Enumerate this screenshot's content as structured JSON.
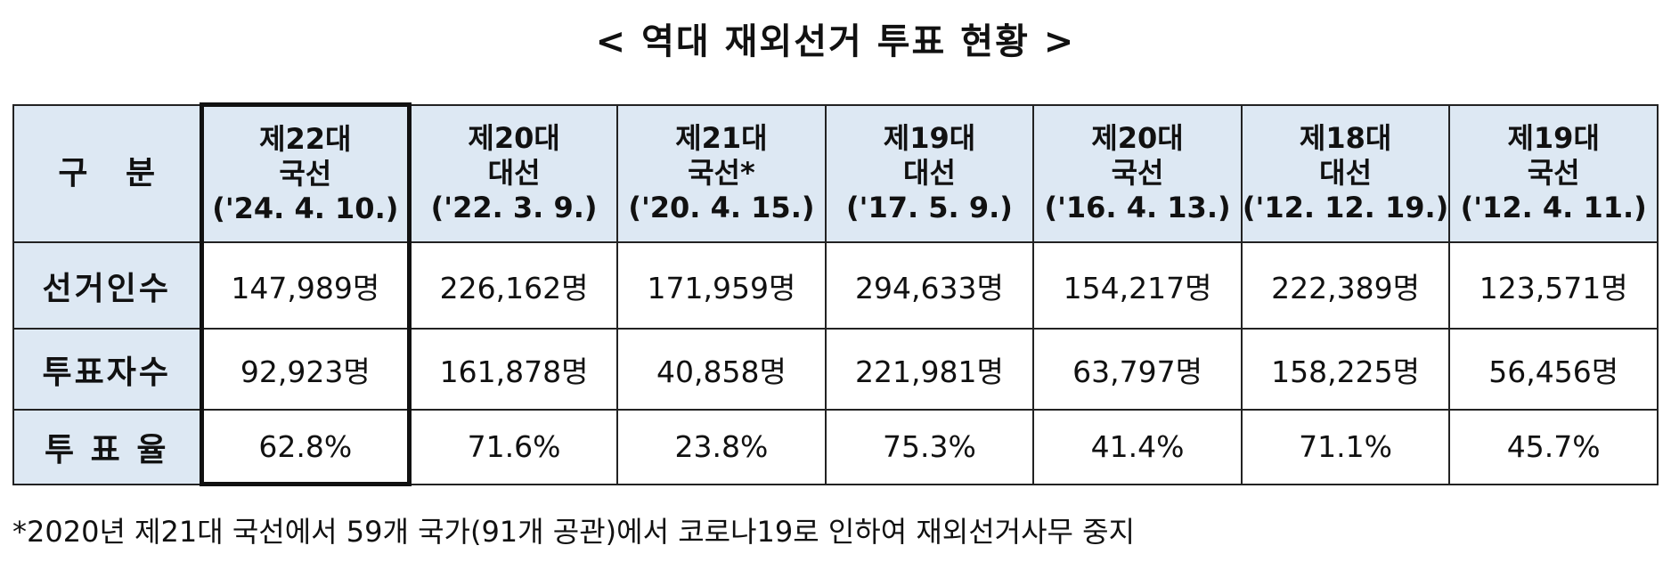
{
  "title": "< 역대 재외선거 투표 현황 >",
  "table": {
    "header": [
      {
        "lines": [
          "구 분"
        ]
      },
      {
        "lines": [
          "제22대",
          "국선",
          "('24. 4. 10.)"
        ]
      },
      {
        "lines": [
          "제20대",
          "대선",
          "('22. 3. 9.)"
        ]
      },
      {
        "lines": [
          "제21대",
          "국선*",
          "('20. 4. 15.)"
        ]
      },
      {
        "lines": [
          "제19대",
          "대선",
          "('17. 5. 9.)"
        ]
      },
      {
        "lines": [
          "제20대",
          "국선",
          "('16. 4. 13.)"
        ]
      },
      {
        "lines": [
          "제18대",
          "대선",
          "('12. 12. 19.)"
        ]
      },
      {
        "lines": [
          "제19대",
          "국선",
          "('12. 4. 11.)"
        ]
      }
    ],
    "rows": [
      [
        "선거인수",
        "147,989명",
        "226,162명",
        "171,959명",
        "294,633명",
        "154,217명",
        "222,389명",
        "123,571명"
      ],
      [
        "투표자수",
        "92,923명",
        "161,878명",
        "40,858명",
        "221,981명",
        "63,797명",
        "158,225명",
        "56,456명"
      ],
      [
        "투 표 율",
        "62.8%",
        "71.6%",
        "23.8%",
        "75.3%",
        "41.4%",
        "71.1%",
        "45.7%"
      ]
    ]
  },
  "footnote": "*2020년 제21대 국선에서 59개 국가(91개 공관)에서 코로나19로 인하여 재외선거사무 중지"
}
